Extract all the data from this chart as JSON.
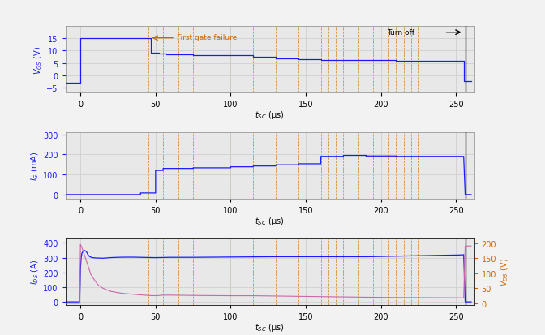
{
  "fig_bg": "#f2f2f2",
  "plot_bg": "#e8e8e8",
  "blue": "#1a1aff",
  "orange_line": "#cc6600",
  "orange_vline": "#cc7700",
  "grid_color": "#d0d0d0",
  "xlim": [
    -10,
    262
  ],
  "vlines": [
    45,
    55,
    65,
    75,
    100,
    115,
    130,
    145,
    160,
    165,
    170,
    175,
    185,
    195,
    205,
    210,
    215,
    220,
    225
  ],
  "turnoff_x": 256,
  "first_gate_failure_x": 45,
  "panel1": {
    "ylim": [
      -7,
      20
    ],
    "yticks": [
      -5,
      0,
      5,
      10,
      15
    ],
    "vgs_t": [
      -10,
      -0.1,
      0,
      0,
      40,
      40,
      47,
      47,
      52,
      52,
      57,
      57,
      75,
      75,
      100,
      100,
      115,
      115,
      130,
      130,
      145,
      145,
      160,
      160,
      175,
      175,
      190,
      190,
      210,
      210,
      255,
      255,
      256,
      260
    ],
    "vgs_v": [
      -3,
      -3,
      -3,
      15,
      15,
      15,
      15,
      9.2,
      9.2,
      8.8,
      8.8,
      8.5,
      8.5,
      8.2,
      8.2,
      8.0,
      8.0,
      7.5,
      7.5,
      7.0,
      7.0,
      6.5,
      6.5,
      6.3,
      6.3,
      6.2,
      6.2,
      6.1,
      6.1,
      6.0,
      6.0,
      -2.5,
      -2.5,
      -2.5
    ]
  },
  "panel2": {
    "ylim": [
      -20,
      310
    ],
    "yticks": [
      0,
      100,
      200,
      300
    ],
    "ig_t": [
      -10,
      -0.1,
      0,
      0,
      40,
      40,
      50,
      50,
      55,
      55,
      75,
      75,
      100,
      100,
      115,
      115,
      130,
      130,
      145,
      145,
      160,
      160,
      175,
      175,
      190,
      190,
      210,
      210,
      255,
      255,
      256,
      260
    ],
    "ig_v": [
      0,
      0,
      0,
      0,
      0,
      8,
      8,
      120,
      120,
      130,
      130,
      133,
      133,
      138,
      138,
      142,
      142,
      148,
      148,
      153,
      153,
      190,
      190,
      195,
      195,
      192,
      192,
      190,
      190,
      190,
      0,
      0
    ]
  },
  "panel3": {
    "ylim_left": [
      -20,
      430
    ],
    "ylim_right": [
      -5,
      215
    ],
    "yticks_left": [
      0,
      100,
      200,
      300,
      400
    ],
    "yticks_right": [
      0,
      50,
      100,
      150,
      200
    ],
    "ids_t": [
      -10,
      -0.5,
      0,
      0.5,
      1,
      2,
      3,
      4,
      5,
      6,
      7,
      8,
      10,
      12,
      15,
      20,
      25,
      30,
      35,
      40,
      45,
      50,
      55,
      60,
      75,
      100,
      115,
      130,
      145,
      160,
      175,
      190,
      210,
      253,
      255,
      256,
      260
    ],
    "ids_v": [
      0,
      0,
      220,
      300,
      330,
      345,
      348,
      340,
      320,
      308,
      303,
      300,
      298,
      297,
      296,
      300,
      302,
      303,
      303,
      302,
      301,
      300,
      301,
      302,
      302,
      304,
      305,
      306,
      306,
      306,
      306,
      306,
      310,
      318,
      320,
      0,
      0
    ],
    "vds_t": [
      -10,
      -0.5,
      0,
      0.5,
      1,
      2,
      3,
      5,
      7,
      10,
      12,
      15,
      20,
      25,
      30,
      35,
      40,
      45,
      50,
      55,
      60,
      75,
      100,
      115,
      130,
      145,
      160,
      175,
      190,
      210,
      253,
      255,
      256,
      260
    ],
    "vds_v": [
      0,
      0,
      195,
      190,
      185,
      170,
      155,
      125,
      95,
      72,
      60,
      50,
      40,
      35,
      32,
      30,
      28,
      26,
      25,
      27,
      27,
      26,
      25,
      25,
      24,
      23,
      22,
      21,
      20,
      19,
      18,
      18,
      190,
      190
    ]
  }
}
